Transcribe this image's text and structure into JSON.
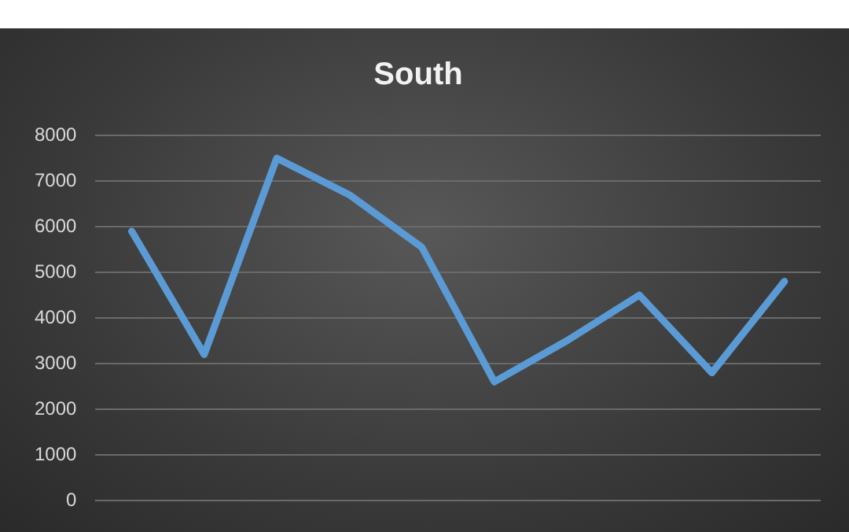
{
  "chart_data": {
    "type": "line",
    "title": "South",
    "categories": [
      null,
      null,
      null,
      null,
      null,
      null,
      null,
      null,
      null,
      null
    ],
    "values": [
      5900,
      3200,
      7500,
      6700,
      5550,
      2600,
      3500,
      4500,
      2800,
      4800
    ],
    "color": "#5b9bd5",
    "ylim": [
      0,
      8000
    ],
    "yticks": [
      0,
      1000,
      2000,
      3000,
      4000,
      5000,
      6000,
      7000,
      8000
    ],
    "grid": "y",
    "tick_labels": "y",
    "marker": "none",
    "line_style": "solid",
    "legend": false
  }
}
